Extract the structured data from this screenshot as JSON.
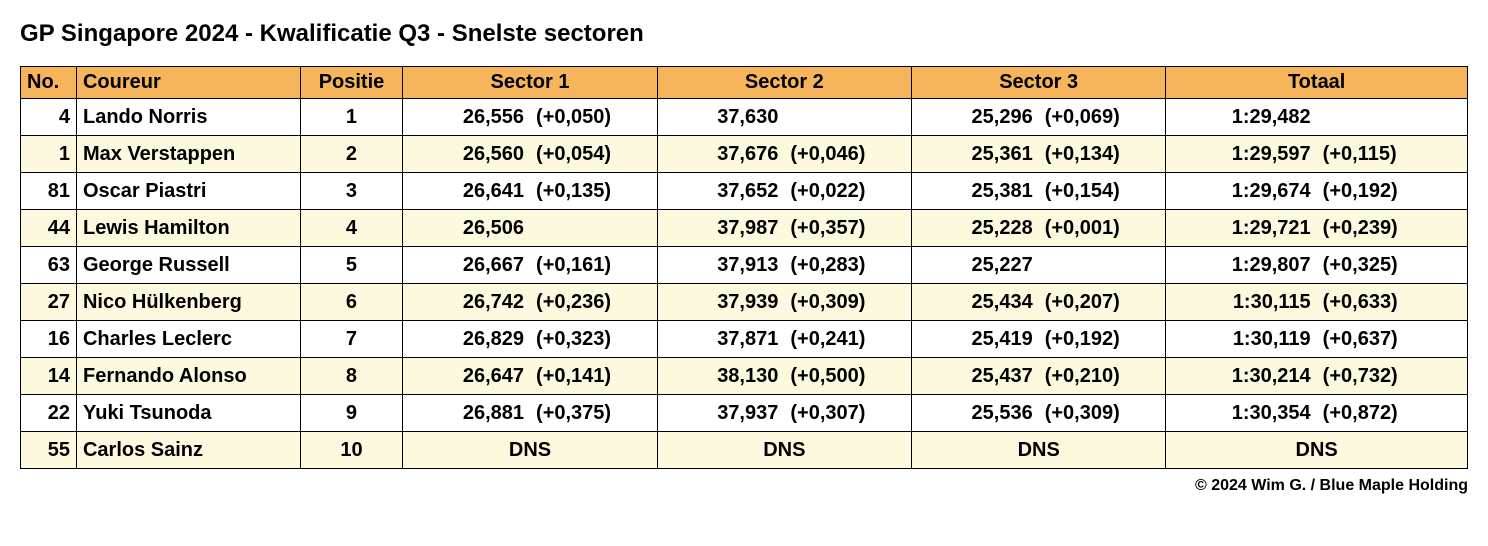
{
  "title": "GP Singapore 2024 - Kwalificatie Q3 - Snelste sectoren",
  "copyright": "© 2024 Wim G. / Blue Maple Holding",
  "colors": {
    "header_bg": "#f6b55a",
    "row_odd_bg": "#ffffff",
    "row_even_bg": "#fdf9df",
    "border": "#000000",
    "text": "#000000"
  },
  "table": {
    "columns": [
      "No.",
      "Coureur",
      "Positie",
      "Sector 1",
      "Sector 2",
      "Sector 3",
      "Totaal"
    ],
    "rows": [
      {
        "no": "4",
        "driver": "Lando Norris",
        "pos": "1",
        "s1": {
          "time": "26,556",
          "delta": "(+0,050)"
        },
        "s2": {
          "time": "37,630",
          "delta": ""
        },
        "s3": {
          "time": "25,296",
          "delta": "(+0,069)"
        },
        "total": {
          "time": "1:29,482",
          "delta": ""
        }
      },
      {
        "no": "1",
        "driver": "Max Verstappen",
        "pos": "2",
        "s1": {
          "time": "26,560",
          "delta": "(+0,054)"
        },
        "s2": {
          "time": "37,676",
          "delta": "(+0,046)"
        },
        "s3": {
          "time": "25,361",
          "delta": "(+0,134)"
        },
        "total": {
          "time": "1:29,597",
          "delta": "(+0,115)"
        }
      },
      {
        "no": "81",
        "driver": "Oscar Piastri",
        "pos": "3",
        "s1": {
          "time": "26,641",
          "delta": "(+0,135)"
        },
        "s2": {
          "time": "37,652",
          "delta": "(+0,022)"
        },
        "s3": {
          "time": "25,381",
          "delta": "(+0,154)"
        },
        "total": {
          "time": "1:29,674",
          "delta": "(+0,192)"
        }
      },
      {
        "no": "44",
        "driver": "Lewis Hamilton",
        "pos": "4",
        "s1": {
          "time": "26,506",
          "delta": ""
        },
        "s2": {
          "time": "37,987",
          "delta": "(+0,357)"
        },
        "s3": {
          "time": "25,228",
          "delta": "(+0,001)"
        },
        "total": {
          "time": "1:29,721",
          "delta": "(+0,239)"
        }
      },
      {
        "no": "63",
        "driver": "George Russell",
        "pos": "5",
        "s1": {
          "time": "26,667",
          "delta": "(+0,161)"
        },
        "s2": {
          "time": "37,913",
          "delta": "(+0,283)"
        },
        "s3": {
          "time": "25,227",
          "delta": ""
        },
        "total": {
          "time": "1:29,807",
          "delta": "(+0,325)"
        }
      },
      {
        "no": "27",
        "driver": "Nico Hülkenberg",
        "pos": "6",
        "s1": {
          "time": "26,742",
          "delta": "(+0,236)"
        },
        "s2": {
          "time": "37,939",
          "delta": "(+0,309)"
        },
        "s3": {
          "time": "25,434",
          "delta": "(+0,207)"
        },
        "total": {
          "time": "1:30,115",
          "delta": "(+0,633)"
        }
      },
      {
        "no": "16",
        "driver": "Charles Leclerc",
        "pos": "7",
        "s1": {
          "time": "26,829",
          "delta": "(+0,323)"
        },
        "s2": {
          "time": "37,871",
          "delta": "(+0,241)"
        },
        "s3": {
          "time": "25,419",
          "delta": "(+0,192)"
        },
        "total": {
          "time": "1:30,119",
          "delta": "(+0,637)"
        }
      },
      {
        "no": "14",
        "driver": "Fernando Alonso",
        "pos": "8",
        "s1": {
          "time": "26,647",
          "delta": "(+0,141)"
        },
        "s2": {
          "time": "38,130",
          "delta": "(+0,500)"
        },
        "s3": {
          "time": "25,437",
          "delta": "(+0,210)"
        },
        "total": {
          "time": "1:30,214",
          "delta": "(+0,732)"
        }
      },
      {
        "no": "22",
        "driver": "Yuki Tsunoda",
        "pos": "9",
        "s1": {
          "time": "26,881",
          "delta": "(+0,375)"
        },
        "s2": {
          "time": "37,937",
          "delta": "(+0,307)"
        },
        "s3": {
          "time": "25,536",
          "delta": "(+0,309)"
        },
        "total": {
          "time": "1:30,354",
          "delta": "(+0,872)"
        }
      },
      {
        "no": "55",
        "driver": "Carlos Sainz",
        "pos": "10",
        "s1": {
          "dns": "DNS"
        },
        "s2": {
          "dns": "DNS"
        },
        "s3": {
          "dns": "DNS"
        },
        "total": {
          "dns": "DNS"
        }
      }
    ]
  }
}
